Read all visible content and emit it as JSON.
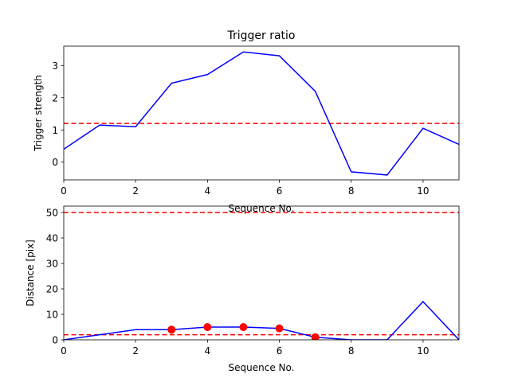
{
  "chart_data": [
    {
      "type": "line",
      "title": "Trigger ratio",
      "xlabel": "Sequence No.",
      "ylabel": "Trigger strength",
      "xlim": [
        0,
        11
      ],
      "ylim": [
        -0.55,
        3.6
      ],
      "xticks": [
        0,
        2,
        4,
        6,
        8,
        10
      ],
      "yticks": [
        0,
        1,
        2,
        3
      ],
      "grid": false,
      "series": [
        {
          "color": "#0000ff",
          "x": [
            0,
            1,
            2,
            3,
            4,
            5,
            6,
            7,
            8,
            9,
            10,
            11
          ],
          "values": [
            0.4,
            1.15,
            1.1,
            2.45,
            2.72,
            3.42,
            3.3,
            2.2,
            -0.3,
            -0.4,
            1.05,
            0.55
          ]
        }
      ],
      "hlines": [
        {
          "y": 1.2,
          "color": "#ff0000",
          "style": "dashed"
        }
      ]
    },
    {
      "type": "line",
      "title": "",
      "xlabel": "Sequence No.",
      "ylabel": "Distance [pix]",
      "xlim": [
        0,
        11
      ],
      "ylim": [
        0,
        52.5
      ],
      "xticks": [
        0,
        2,
        4,
        6,
        8,
        10
      ],
      "yticks": [
        0,
        10,
        20,
        30,
        40,
        50
      ],
      "grid": false,
      "series": [
        {
          "color": "#0000ff",
          "x": [
            0,
            1,
            2,
            3,
            4,
            5,
            6,
            7,
            8,
            9,
            10,
            11
          ],
          "values": [
            0,
            2,
            4,
            4,
            5,
            5,
            4.5,
            1,
            0,
            0,
            15,
            0
          ]
        }
      ],
      "markers": {
        "color": "#ff0000",
        "x": [
          3,
          4,
          5,
          6,
          7
        ],
        "values": [
          4,
          5,
          5,
          4.5,
          1
        ]
      },
      "hlines": [
        {
          "y": 50,
          "color": "#ff0000",
          "style": "dashed"
        },
        {
          "y": 2,
          "color": "#ff0000",
          "style": "dashed"
        }
      ]
    }
  ]
}
